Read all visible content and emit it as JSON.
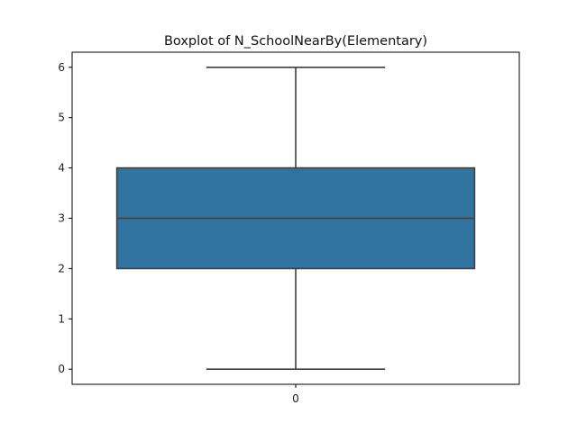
{
  "chart_data": {
    "type": "box",
    "title": "Boxplot of N_SchoolNearBy(Elementary)",
    "xlabel": "",
    "ylabel": "",
    "categories": [
      "0"
    ],
    "boxes": [
      {
        "category": "0",
        "whisker_low": 0,
        "q1": 2,
        "median": 3,
        "q3": 4,
        "whisker_high": 6
      }
    ],
    "yticks": [
      0,
      1,
      2,
      3,
      4,
      5,
      6
    ],
    "ylim": [
      -0.3,
      6.3
    ],
    "grid": false,
    "colors": {
      "box_fill": "#3274a1",
      "box_edge": "#3f3f3f",
      "axes": "#000000"
    }
  }
}
